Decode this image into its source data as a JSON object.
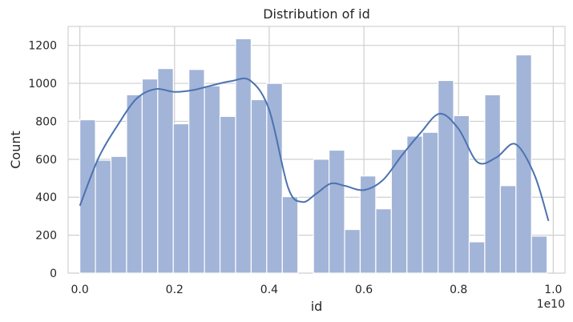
{
  "chart_data": {
    "type": "bar",
    "title": "Distribution of id",
    "xlabel": "id",
    "ylabel": "Count",
    "x_offset_label": "1e10",
    "xlim": [
      -0.0248,
      1.0248
    ],
    "ylim": [
      0,
      1300
    ],
    "xticks": [
      "0.0",
      "0.2",
      "0.4",
      "0.6",
      "0.8",
      "1.0"
    ],
    "xtick_values": [
      0.0,
      0.2,
      0.4,
      0.6,
      0.8,
      1.0
    ],
    "yticks": [
      "0",
      "200",
      "400",
      "600",
      "800",
      "1000",
      "1200"
    ],
    "ytick_values": [
      0,
      200,
      400,
      600,
      800,
      1000,
      1200
    ],
    "grid": true,
    "bin_width": 0.0329,
    "bins_start": [
      0.0,
      0.0329,
      0.0658,
      0.0987,
      0.1316,
      0.1645,
      0.1974,
      0.2303,
      0.2632,
      0.2961,
      0.329,
      0.3619,
      0.3948,
      0.4277,
      0.4606,
      0.4935,
      0.5264,
      0.5593,
      0.5922,
      0.6251,
      0.658,
      0.6909,
      0.7238,
      0.7567,
      0.7896,
      0.8225,
      0.8554,
      0.8883,
      0.9212,
      0.9541
    ],
    "counts": [
      808,
      595,
      615,
      940,
      1023,
      1078,
      787,
      1073,
      987,
      826,
      1235,
      914,
      1000,
      403,
      0,
      600,
      648,
      230,
      512,
      339,
      652,
      722,
      742,
      1015,
      830,
      165,
      940,
      461,
      1150,
      195
    ],
    "kde": {
      "x": [
        0.0,
        0.04,
        0.08,
        0.12,
        0.16,
        0.2,
        0.24,
        0.28,
        0.32,
        0.36,
        0.4,
        0.44,
        0.47,
        0.5,
        0.53,
        0.56,
        0.6,
        0.64,
        0.68,
        0.72,
        0.76,
        0.8,
        0.84,
        0.88,
        0.92,
        0.96,
        0.99
      ],
      "y": [
        355,
        610,
        780,
        920,
        970,
        955,
        965,
        990,
        1012,
        1015,
        860,
        450,
        375,
        420,
        472,
        460,
        438,
        490,
        620,
        740,
        840,
        760,
        585,
        610,
        680,
        520,
        275
      ]
    }
  },
  "colors": {
    "bar_fill": "#a2b4d8",
    "bar_edge": "#ffffff",
    "kde_line": "#4c72b0",
    "grid": "#cfcfcf",
    "frame": "#c8c8c8",
    "text": "#262626"
  }
}
